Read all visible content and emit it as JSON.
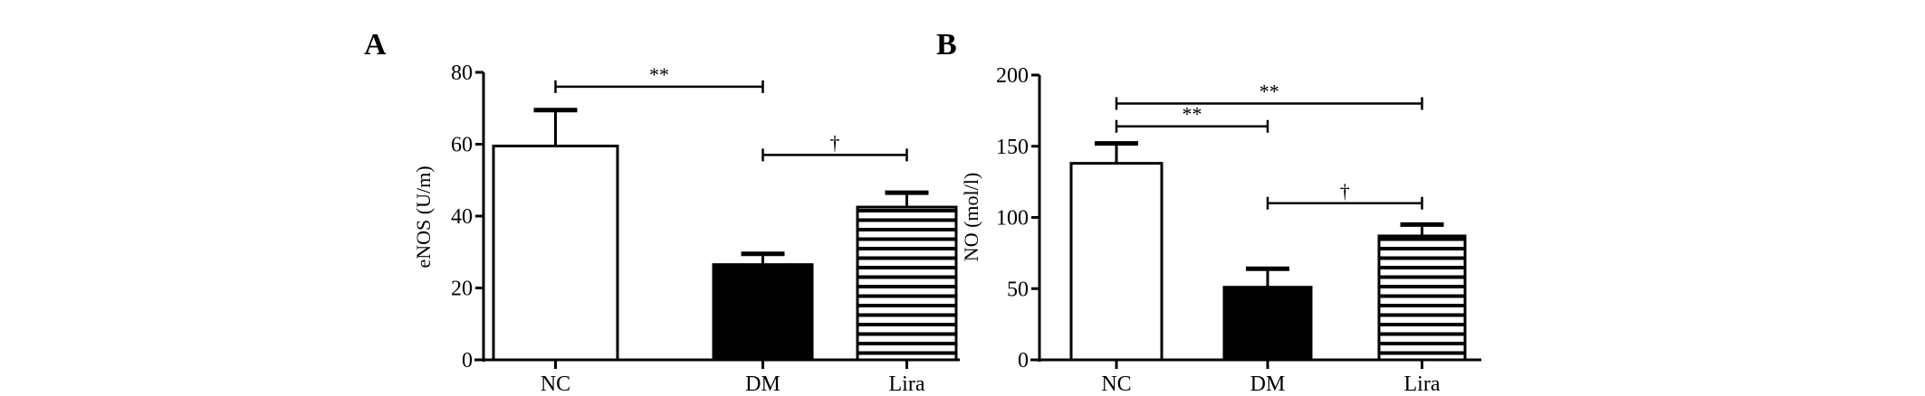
{
  "chart_data": [
    {
      "type": "bar",
      "panel_label": "A",
      "ylabel": "eNOS (U/m)",
      "xlabel": "",
      "categories": [
        "NC",
        "DM",
        "Lira"
      ],
      "values": [
        59.5,
        26.5,
        42.5
      ],
      "error_upper": [
        69.5,
        29.5,
        46.5
      ],
      "bar_fill": [
        "white",
        "black",
        "horizontal-stripes"
      ],
      "ylim": [
        0,
        80
      ],
      "yticks": [
        0,
        20,
        40,
        60,
        80
      ],
      "grid": false,
      "significance": [
        {
          "from": "NC",
          "to": "DM",
          "label": "**",
          "level": 76
        },
        {
          "from": "DM",
          "to": "Lira",
          "label": "†",
          "level": 57
        }
      ]
    },
    {
      "type": "bar",
      "panel_label": "B",
      "ylabel": "NO (mol/l)",
      "xlabel": "",
      "categories": [
        "NC",
        "DM",
        "Lira"
      ],
      "values": [
        138,
        51,
        87
      ],
      "error_upper": [
        152,
        64,
        95
      ],
      "bar_fill": [
        "white",
        "black",
        "horizontal-stripes"
      ],
      "ylim": [
        0,
        200
      ],
      "yticks": [
        0,
        50,
        100,
        150,
        200
      ],
      "grid": false,
      "significance": [
        {
          "from": "NC",
          "to": "Lira",
          "label": "**",
          "level": 180
        },
        {
          "from": "NC",
          "to": "DM",
          "label": "**",
          "level": 164
        },
        {
          "from": "DM",
          "to": "Lira",
          "label": "†",
          "level": 110
        }
      ]
    }
  ]
}
